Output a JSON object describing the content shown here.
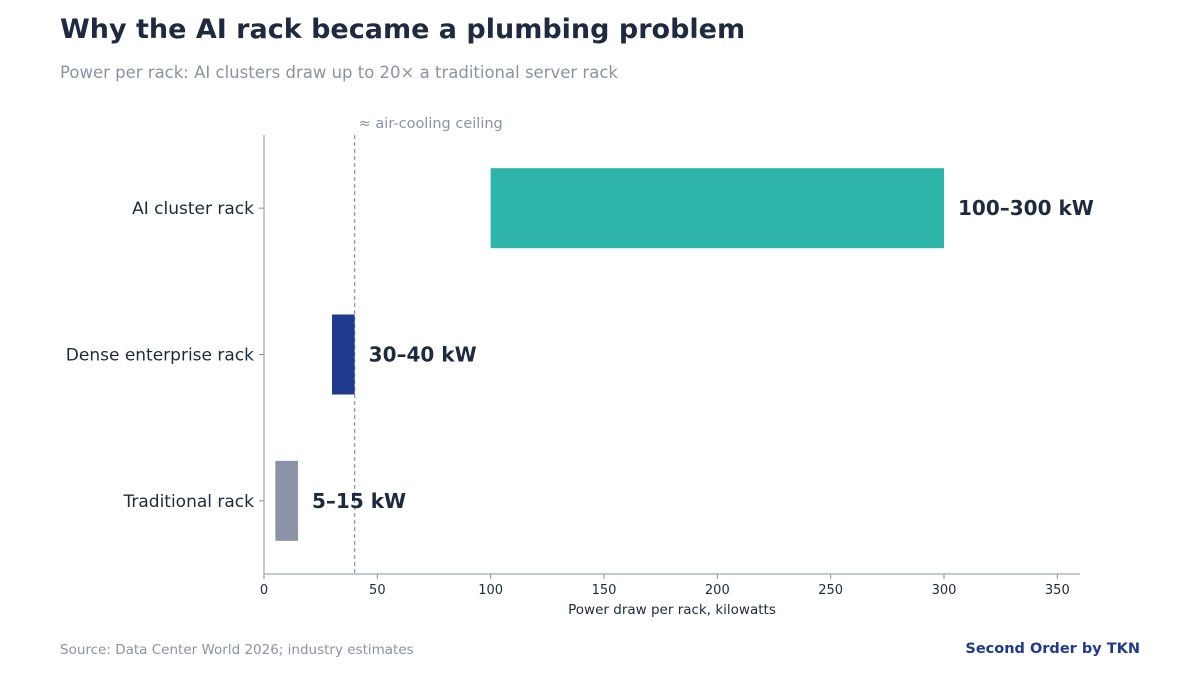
{
  "header": {
    "title": "Why the AI rack became a plumbing problem",
    "subtitle": "Power per rack: AI clusters draw up to 20× a traditional server rack"
  },
  "footer": {
    "source": "Source: Data Center World 2026; industry estimates",
    "brand": "Second Order by TKN"
  },
  "chart_data": {
    "type": "bar",
    "orientation": "horizontal",
    "categories": [
      "AI cluster rack",
      "Dense enterprise rack",
      "Traditional rack"
    ],
    "ranges": [
      {
        "category": "AI cluster rack",
        "min": 100,
        "max": 300,
        "label": "100–300 kW",
        "color": "#2db5aa"
      },
      {
        "category": "Dense enterprise rack",
        "min": 30,
        "max": 40,
        "label": "30–40 kW",
        "color": "#1f3a8f"
      },
      {
        "category": "Traditional rack",
        "min": 5,
        "max": 15,
        "label": "5–15 kW",
        "color": "#8c93a8"
      }
    ],
    "xlabel": "Power draw per rack, kilowatts",
    "xlim": [
      0,
      360
    ],
    "xticks": [
      0,
      50,
      100,
      150,
      200,
      250,
      300,
      350
    ],
    "reference_line": {
      "value": 40,
      "label": "≈ air-cooling ceiling",
      "color": "#8a93b0"
    },
    "grid": false
  }
}
